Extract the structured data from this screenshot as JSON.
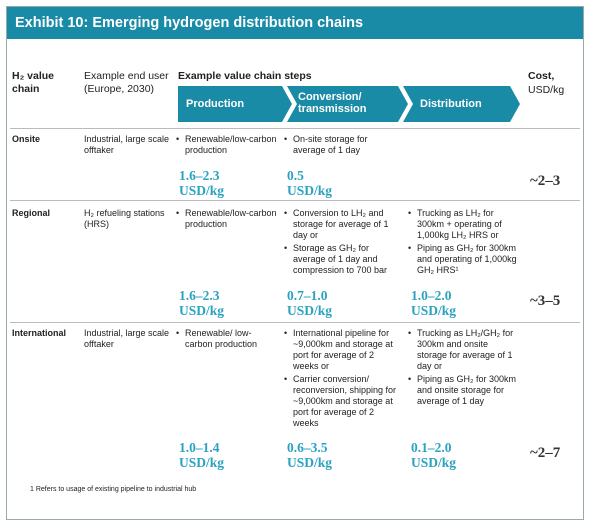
{
  "title": "Exhibit 10: Emerging hydrogen distribution chains",
  "headers": {
    "chain": "H₂ value chain",
    "end_user": "Example end user (Europe, 2030)",
    "steps_label": "Example value chain steps",
    "steps": [
      "Production",
      "Conversion/ transmission",
      "Distribution"
    ],
    "cost": "Cost,",
    "cost_unit": "USD/kg"
  },
  "rows": [
    {
      "chain": "Onsite",
      "end_user": "Industrial, large scale offtaker",
      "production": {
        "bullets": [
          "Renewable/low-carbon production"
        ],
        "value": "1.6–2.3",
        "unit": "USD/kg"
      },
      "conversion": {
        "bullets": [
          "On-site storage for average of 1 day"
        ],
        "value": "0.5",
        "unit": "USD/kg"
      },
      "cost": "~2–3"
    },
    {
      "chain": "Regional",
      "end_user": "H₂ refueling stations (HRS)",
      "production": {
        "bullets": [
          "Renewable/low-carbon production"
        ],
        "value": "1.6–2.3",
        "unit": "USD/kg"
      },
      "conversion": {
        "bullets": [
          "Conversion to LH₂ and storage for average of 1 day or",
          "Storage as GH₂ for average of 1 day and compression to 700 bar"
        ],
        "value": "0.7–1.0",
        "unit": "USD/kg"
      },
      "distribution": {
        "bullets": [
          "Trucking as LH₂ for 300km + operating of 1,000kg LH₂ HRS or",
          "Piping as GH₂ for 300km and operating of 1,000kg GH₂ HRS¹"
        ],
        "value": "1.0–2.0",
        "unit": "USD/kg"
      },
      "cost": "~3–5"
    },
    {
      "chain": "International",
      "end_user": "Industrial, large scale offtaker",
      "production": {
        "bullets": [
          "Renewable/ low-carbon production"
        ],
        "value": "1.0–1.4",
        "unit": "USD/kg"
      },
      "conversion": {
        "bullets": [
          "International pipeline for ~9,000km and storage at port for average of 2 weeks or",
          "Carrier conversion/ reconversion, shipping for ~9,000km and storage at port for average of 2 weeks"
        ],
        "value": "0.6–3.5",
        "unit": "USD/kg"
      },
      "distribution": {
        "bullets": [
          "Trucking as LH₂/GH₂ for 300km and onsite storage for average of 1 day or",
          "Piping as GH₂ for 300km and onsite storage for average of 1 day"
        ],
        "value": "0.1–2.0",
        "unit": "USD/kg"
      },
      "cost": "~2–7"
    }
  ],
  "footnote": "1 Refers to usage of existing pipeline to industrial hub"
}
